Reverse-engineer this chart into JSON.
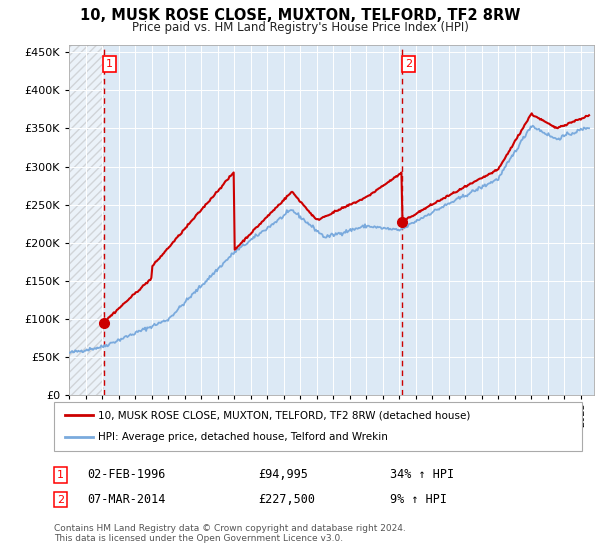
{
  "title": "10, MUSK ROSE CLOSE, MUXTON, TELFORD, TF2 8RW",
  "subtitle": "Price paid vs. HM Land Registry's House Price Index (HPI)",
  "background_color": "#dce9f5",
  "grid_color": "#ffffff",
  "red_line_color": "#cc0000",
  "blue_line_color": "#7aaadd",
  "sale1_date": "02-FEB-1996",
  "sale1_price": 94995,
  "sale1_label": "34% ↑ HPI",
  "sale2_date": "07-MAR-2014",
  "sale2_price": 227500,
  "sale2_label": "9% ↑ HPI",
  "yticks": [
    0,
    50000,
    100000,
    150000,
    200000,
    250000,
    300000,
    350000,
    400000,
    450000
  ],
  "xlim_start": 1994.0,
  "xlim_end": 2025.8,
  "ylim_min": 0,
  "ylim_max": 460000,
  "legend_line1": "10, MUSK ROSE CLOSE, MUXTON, TELFORD, TF2 8RW (detached house)",
  "legend_line2": "HPI: Average price, detached house, Telford and Wrekin",
  "footer": "Contains HM Land Registry data © Crown copyright and database right 2024.\nThis data is licensed under the Open Government Licence v3.0.",
  "sale1_x": 1996.09,
  "sale2_x": 2014.18
}
